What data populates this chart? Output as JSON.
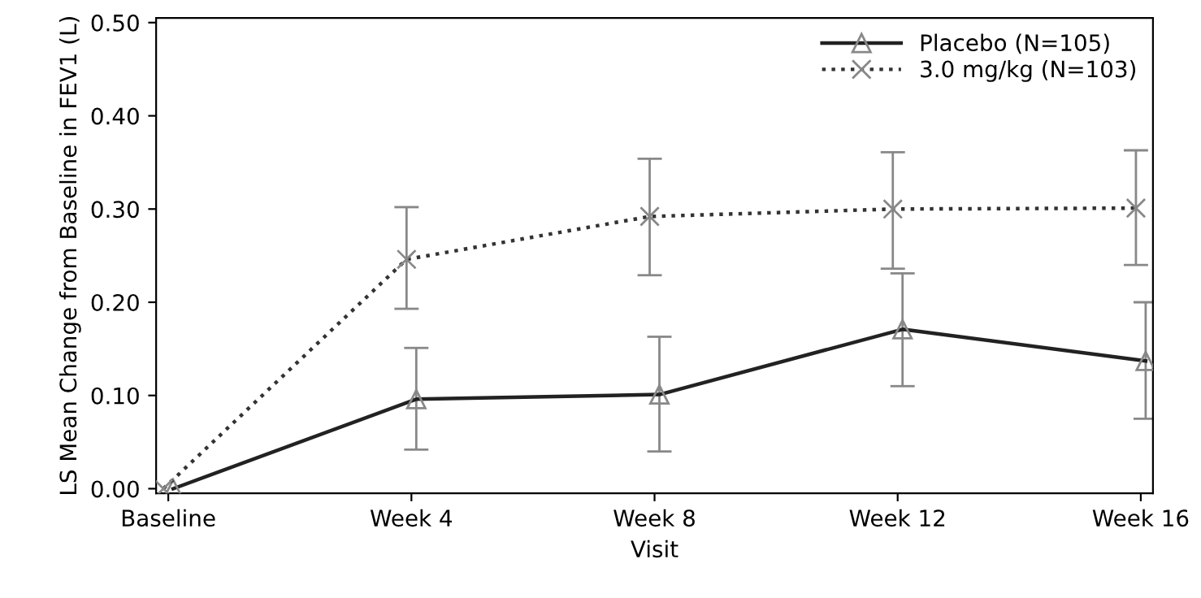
{
  "chart_data": {
    "type": "line",
    "xlabel": "Visit",
    "ylabel": "LS Mean Change from Baseline in FEV1 (L)",
    "categories": [
      "Baseline",
      "Week 4",
      "Week 8",
      "Week 12",
      "Week 16"
    ],
    "series": [
      {
        "name": "Placebo (N=105)",
        "color": "#222222",
        "marker": "triangle",
        "line_style": "solid",
        "values": [
          0.0,
          0.096,
          0.101,
          0.171,
          0.137
        ],
        "errors": [
          null,
          [
            0.042,
            0.151
          ],
          [
            0.04,
            0.163
          ],
          [
            0.11,
            0.231
          ],
          [
            0.075,
            0.2
          ]
        ]
      },
      {
        "name": "3.0 mg/kg (N=103)",
        "color": "#333333",
        "marker": "cross",
        "line_style": "dotted",
        "values": [
          0.0,
          0.246,
          0.292,
          0.3,
          0.301
        ],
        "errors": [
          null,
          [
            0.193,
            0.302
          ],
          [
            0.229,
            0.354
          ],
          [
            0.236,
            0.361
          ],
          [
            0.24,
            0.363
          ]
        ]
      }
    ],
    "ylim": [
      -0.005,
      0.505
    ],
    "yticks": [
      {
        "value": 0,
        "label": "0.00"
      },
      {
        "value": 0.1,
        "label": "0.10"
      },
      {
        "value": 0.2,
        "label": "0.20"
      },
      {
        "value": 0.3,
        "label": "0.30"
      },
      {
        "value": 0.4,
        "label": "0.40"
      },
      {
        "value": 0.5,
        "label": "0.50"
      }
    ],
    "grid": false,
    "legend": "top right"
  }
}
